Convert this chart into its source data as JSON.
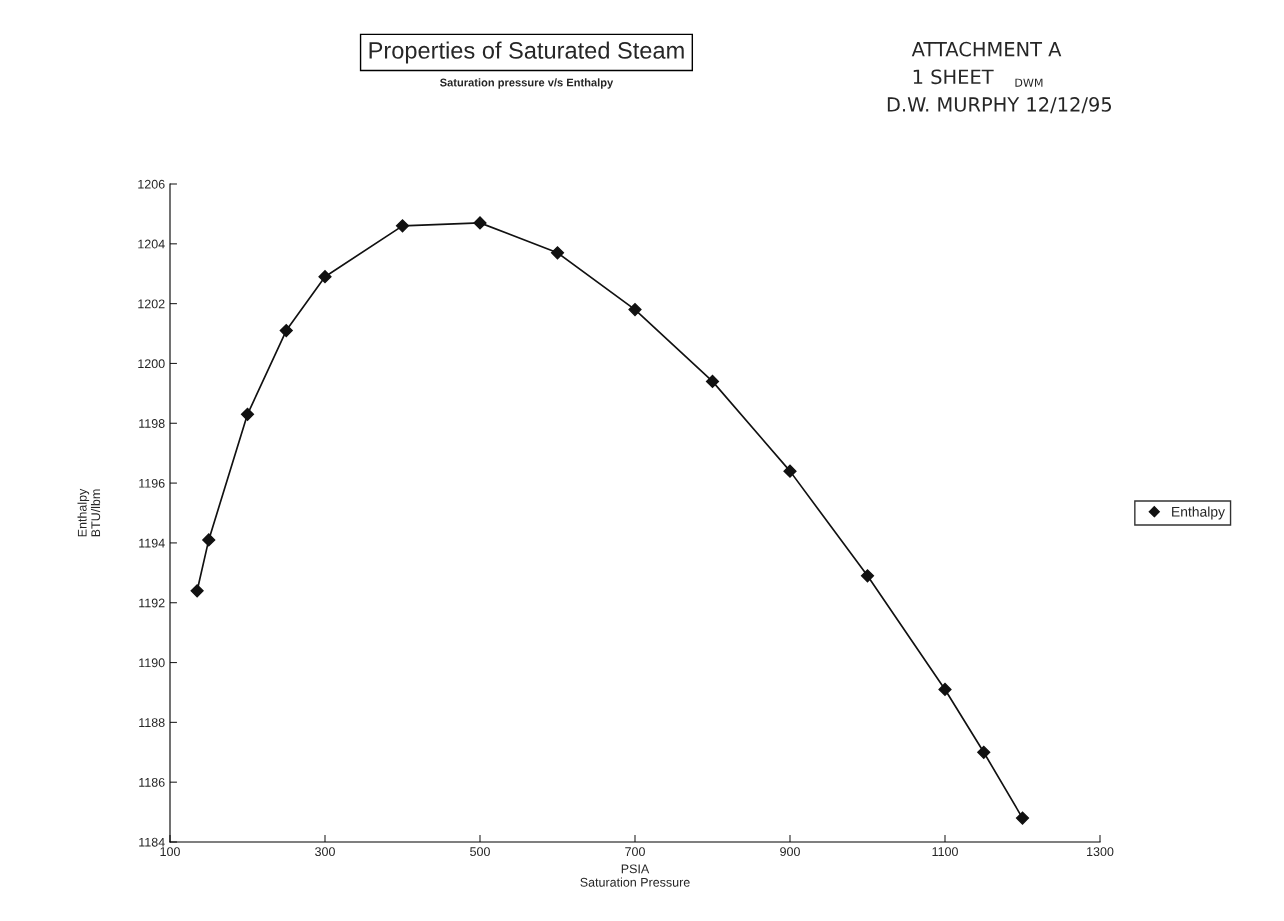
{
  "chart_data": {
    "type": "line",
    "title": "Properties of Saturated Steam",
    "subtitle": "Saturation pressure v/s Enthalpy",
    "xlabel": "PSIA\nSaturation Pressure",
    "ylabel": "Enthalpy\nBTU/lbm",
    "x": [
      135,
      150,
      200,
      250,
      300,
      400,
      500,
      600,
      700,
      800,
      900,
      1000,
      1100,
      1150,
      1200
    ],
    "series": [
      {
        "name": "Enthalpy",
        "color": "#111111",
        "values": [
          1192.4,
          1194.1,
          1198.3,
          1201.1,
          1202.9,
          1204.6,
          1204.7,
          1203.7,
          1201.8,
          1199.4,
          1196.4,
          1192.9,
          1189.1,
          1187.0,
          1184.8
        ]
      }
    ],
    "xlim": [
      100,
      1300
    ],
    "xticks": [
      100,
      300,
      500,
      700,
      900,
      1100,
      1300
    ],
    "ylim": [
      1184,
      1206
    ],
    "yticks": [
      1184,
      1186,
      1188,
      1190,
      1192,
      1194,
      1196,
      1198,
      1200,
      1202,
      1204,
      1206
    ],
    "marker": "diamond",
    "line_style": "solid",
    "grid": false,
    "legend": "right",
    "annotations": [
      "ATTACHMENT A",
      "1 SHEET",
      "D.W. MURPHY 12/12/95",
      "DWM"
    ]
  }
}
